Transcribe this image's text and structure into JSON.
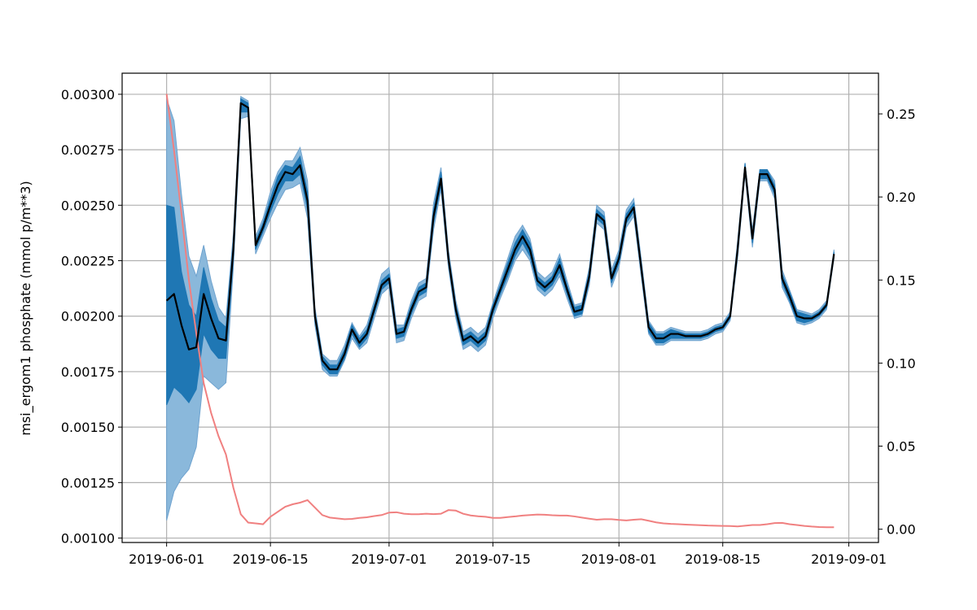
{
  "chart_data": {
    "type": "line",
    "ylabel": "msi_ergom1 phosphate (mmol p/m**3)",
    "grid": true,
    "x": [
      "2019-06-01",
      "2019-06-02",
      "2019-06-03",
      "2019-06-04",
      "2019-06-05",
      "2019-06-06",
      "2019-06-07",
      "2019-06-08",
      "2019-06-09",
      "2019-06-10",
      "2019-06-11",
      "2019-06-12",
      "2019-06-13",
      "2019-06-14",
      "2019-06-15",
      "2019-06-16",
      "2019-06-17",
      "2019-06-18",
      "2019-06-19",
      "2019-06-20",
      "2019-06-21",
      "2019-06-22",
      "2019-06-23",
      "2019-06-24",
      "2019-06-25",
      "2019-06-26",
      "2019-06-27",
      "2019-06-28",
      "2019-06-29",
      "2019-06-30",
      "2019-07-01",
      "2019-07-02",
      "2019-07-03",
      "2019-07-04",
      "2019-07-05",
      "2019-07-06",
      "2019-07-07",
      "2019-07-08",
      "2019-07-09",
      "2019-07-10",
      "2019-07-11",
      "2019-07-12",
      "2019-07-13",
      "2019-07-14",
      "2019-07-15",
      "2019-07-16",
      "2019-07-17",
      "2019-07-18",
      "2019-07-19",
      "2019-07-20",
      "2019-07-21",
      "2019-07-22",
      "2019-07-23",
      "2019-07-24",
      "2019-07-25",
      "2019-07-26",
      "2019-07-27",
      "2019-07-28",
      "2019-07-29",
      "2019-07-30",
      "2019-07-31",
      "2019-08-01",
      "2019-08-02",
      "2019-08-03",
      "2019-08-04",
      "2019-08-05",
      "2019-08-06",
      "2019-08-07",
      "2019-08-08",
      "2019-08-09",
      "2019-08-10",
      "2019-08-11",
      "2019-08-12",
      "2019-08-13",
      "2019-08-14",
      "2019-08-15",
      "2019-08-16",
      "2019-08-17",
      "2019-08-18",
      "2019-08-19",
      "2019-08-20",
      "2019-08-21",
      "2019-08-22",
      "2019-08-23",
      "2019-08-24",
      "2019-08-25",
      "2019-08-26",
      "2019-08-27",
      "2019-08-28",
      "2019-08-29",
      "2019-08-30"
    ],
    "mean": [
      0.00207,
      0.0021,
      0.00196,
      0.00185,
      0.00186,
      0.0021,
      0.00199,
      0.0019,
      0.00189,
      0.0023,
      0.00296,
      0.00294,
      0.00232,
      0.0024,
      0.0025,
      0.00259,
      0.00265,
      0.00264,
      0.00268,
      0.00252,
      0.002,
      0.0018,
      0.00176,
      0.00176,
      0.00183,
      0.00194,
      0.00188,
      0.00192,
      0.00203,
      0.00214,
      0.00217,
      0.00192,
      0.00193,
      0.00203,
      0.00211,
      0.00213,
      0.00245,
      0.00262,
      0.00226,
      0.00203,
      0.00189,
      0.00191,
      0.00188,
      0.00191,
      0.00203,
      0.00212,
      0.00221,
      0.0023,
      0.00236,
      0.0023,
      0.00216,
      0.00213,
      0.00216,
      0.00223,
      0.00212,
      0.00202,
      0.00203,
      0.00218,
      0.00246,
      0.00243,
      0.00217,
      0.00226,
      0.00244,
      0.00249,
      0.00222,
      0.00195,
      0.0019,
      0.0019,
      0.00192,
      0.00192,
      0.00191,
      0.00191,
      0.00191,
      0.00192,
      0.00194,
      0.00195,
      0.002,
      0.0023,
      0.00267,
      0.00235,
      0.00264,
      0.00264,
      0.00257,
      0.00217,
      0.00209,
      0.002,
      0.00199,
      0.00199,
      0.00201,
      0.00205,
      0.00228
    ],
    "inner_band_upper": [
      0.0025,
      0.00249,
      0.0022,
      0.00205,
      0.002,
      0.00222,
      0.00208,
      0.00198,
      0.00195,
      0.00234,
      0.00298,
      0.00296,
      0.00234,
      0.00242,
      0.00253,
      0.00263,
      0.00268,
      0.00267,
      0.00272,
      0.00256,
      0.00202,
      0.00182,
      0.00178,
      0.00178,
      0.00185,
      0.00196,
      0.0019,
      0.00194,
      0.00205,
      0.00216,
      0.00219,
      0.00194,
      0.00195,
      0.00205,
      0.00213,
      0.00215,
      0.00248,
      0.00265,
      0.00228,
      0.00205,
      0.00191,
      0.00193,
      0.0019,
      0.00193,
      0.00205,
      0.00214,
      0.00224,
      0.00233,
      0.00239,
      0.00233,
      0.00218,
      0.00215,
      0.00218,
      0.00226,
      0.00214,
      0.00204,
      0.00205,
      0.0022,
      0.00248,
      0.00245,
      0.00219,
      0.00228,
      0.00246,
      0.00251,
      0.00224,
      0.00197,
      0.00192,
      0.00192,
      0.00194,
      0.00193,
      0.00192,
      0.00192,
      0.00192,
      0.00193,
      0.00195,
      0.00196,
      0.00201,
      0.00232,
      0.00269,
      0.00237,
      0.00266,
      0.00266,
      0.00259,
      0.00219,
      0.00211,
      0.00202,
      0.00201,
      0.002,
      0.00202,
      0.00206,
      0.00229
    ],
    "inner_band_lower": [
      0.0016,
      0.00168,
      0.00165,
      0.00161,
      0.00167,
      0.00192,
      0.00185,
      0.00181,
      0.00181,
      0.00226,
      0.00292,
      0.00292,
      0.0023,
      0.00238,
      0.00247,
      0.00255,
      0.00261,
      0.00261,
      0.00264,
      0.00248,
      0.00198,
      0.00178,
      0.00174,
      0.00174,
      0.00181,
      0.00192,
      0.00186,
      0.0019,
      0.00201,
      0.00212,
      0.00215,
      0.0019,
      0.00191,
      0.00201,
      0.00209,
      0.00211,
      0.00242,
      0.00259,
      0.00224,
      0.00201,
      0.00187,
      0.00189,
      0.00186,
      0.00189,
      0.00201,
      0.0021,
      0.00218,
      0.00227,
      0.00233,
      0.00227,
      0.00214,
      0.00211,
      0.00214,
      0.0022,
      0.0021,
      0.002,
      0.00201,
      0.00216,
      0.00244,
      0.00241,
      0.00215,
      0.00224,
      0.00242,
      0.00247,
      0.0022,
      0.00193,
      0.00188,
      0.00188,
      0.0019,
      0.0019,
      0.0019,
      0.0019,
      0.0019,
      0.00191,
      0.00193,
      0.00194,
      0.00199,
      0.00228,
      0.00265,
      0.00233,
      0.00262,
      0.00262,
      0.00255,
      0.00215,
      0.00207,
      0.00198,
      0.00197,
      0.00198,
      0.002,
      0.00204,
      0.00227
    ],
    "outer_band_upper": [
      0.00298,
      0.00288,
      0.00255,
      0.00227,
      0.00218,
      0.00232,
      0.00216,
      0.00204,
      0.00199,
      0.00237,
      0.00299,
      0.00297,
      0.00236,
      0.00244,
      0.00256,
      0.00265,
      0.0027,
      0.0027,
      0.00276,
      0.00261,
      0.00204,
      0.00183,
      0.0018,
      0.0018,
      0.00187,
      0.00197,
      0.00191,
      0.00196,
      0.00207,
      0.00219,
      0.00222,
      0.00196,
      0.00196,
      0.00207,
      0.00215,
      0.00217,
      0.00251,
      0.00267,
      0.0023,
      0.00207,
      0.00193,
      0.00195,
      0.00192,
      0.00195,
      0.00206,
      0.00216,
      0.00226,
      0.00236,
      0.00241,
      0.00235,
      0.0022,
      0.00217,
      0.0022,
      0.00228,
      0.00216,
      0.00205,
      0.00206,
      0.00222,
      0.0025,
      0.00247,
      0.00221,
      0.0023,
      0.00248,
      0.00253,
      0.00226,
      0.00198,
      0.00193,
      0.00193,
      0.00195,
      0.00194,
      0.00193,
      0.00193,
      0.00193,
      0.00194,
      0.00196,
      0.00197,
      0.00202,
      0.00234,
      0.00269,
      0.00239,
      0.00266,
      0.00266,
      0.00261,
      0.00221,
      0.00212,
      0.00203,
      0.00202,
      0.00201,
      0.00203,
      0.00207,
      0.0023
    ],
    "outer_band_lower": [
      0.00108,
      0.00121,
      0.00127,
      0.00131,
      0.00141,
      0.00173,
      0.0017,
      0.00167,
      0.0017,
      0.00222,
      0.00289,
      0.0029,
      0.00228,
      0.00236,
      0.00244,
      0.00251,
      0.00257,
      0.00258,
      0.0026,
      0.00244,
      0.00196,
      0.00176,
      0.00173,
      0.00173,
      0.0018,
      0.0019,
      0.00185,
      0.00188,
      0.00199,
      0.0021,
      0.00213,
      0.00188,
      0.00189,
      0.00199,
      0.00207,
      0.00209,
      0.00239,
      0.00257,
      0.00222,
      0.00199,
      0.00185,
      0.00187,
      0.00184,
      0.00187,
      0.00199,
      0.00208,
      0.00216,
      0.00225,
      0.0023,
      0.00225,
      0.00212,
      0.00209,
      0.00212,
      0.00218,
      0.00208,
      0.00199,
      0.002,
      0.00214,
      0.00242,
      0.00239,
      0.00213,
      0.00222,
      0.0024,
      0.00245,
      0.00218,
      0.00192,
      0.00187,
      0.00187,
      0.00189,
      0.00189,
      0.00189,
      0.00189,
      0.00189,
      0.0019,
      0.00192,
      0.00193,
      0.00198,
      0.00226,
      0.00264,
      0.00231,
      0.00261,
      0.00261,
      0.00253,
      0.00213,
      0.00206,
      0.00197,
      0.00196,
      0.00197,
      0.00199,
      0.00203,
      0.00226
    ],
    "secondary_series": [
      0.262,
      0.228,
      0.19,
      0.15,
      0.118,
      0.088,
      0.07,
      0.056,
      0.045,
      0.025,
      0.009,
      0.004,
      0.0035,
      0.003,
      0.0075,
      0.0105,
      0.0135,
      0.015,
      0.016,
      0.0175,
      0.013,
      0.0085,
      0.007,
      0.0065,
      0.006,
      0.0062,
      0.0068,
      0.0072,
      0.0079,
      0.0085,
      0.01,
      0.0102,
      0.0093,
      0.009,
      0.009,
      0.0093,
      0.0091,
      0.0093,
      0.0115,
      0.0112,
      0.0093,
      0.0083,
      0.0078,
      0.0075,
      0.0068,
      0.0068,
      0.0073,
      0.0077,
      0.0082,
      0.0085,
      0.0088,
      0.0087,
      0.0084,
      0.0082,
      0.0082,
      0.0077,
      0.007,
      0.0063,
      0.0057,
      0.006,
      0.006,
      0.0056,
      0.0053,
      0.0057,
      0.006,
      0.0051,
      0.0041,
      0.0035,
      0.0032,
      0.003,
      0.0028,
      0.0026,
      0.0024,
      0.0022,
      0.0021,
      0.002,
      0.0019,
      0.0017,
      0.0021,
      0.0025,
      0.0025,
      0.003,
      0.0037,
      0.0038,
      0.003,
      0.0025,
      0.002,
      0.0016,
      0.0013,
      0.0012,
      0.0012
    ],
    "ylim": [
      0.00098,
      0.003095
    ],
    "y2lim": [
      -0.008,
      0.2745
    ],
    "yticks": [
      "0.00100",
      "0.00125",
      "0.00150",
      "0.00175",
      "0.00200",
      "0.00225",
      "0.00250",
      "0.00275",
      "0.00300"
    ],
    "y2ticks": [
      "0.00",
      "0.05",
      "0.10",
      "0.15",
      "0.20",
      "0.25"
    ],
    "xticks": [
      "2019-06-01",
      "2019-06-15",
      "2019-07-01",
      "2019-07-15",
      "2019-08-01",
      "2019-08-15",
      "2019-09-01"
    ],
    "colors": {
      "mean": "#000000",
      "inner_band": "#1f77b4",
      "outer_band": "#8ab8db",
      "secondary": "#f08080",
      "grid": "#b0b0b0"
    }
  }
}
